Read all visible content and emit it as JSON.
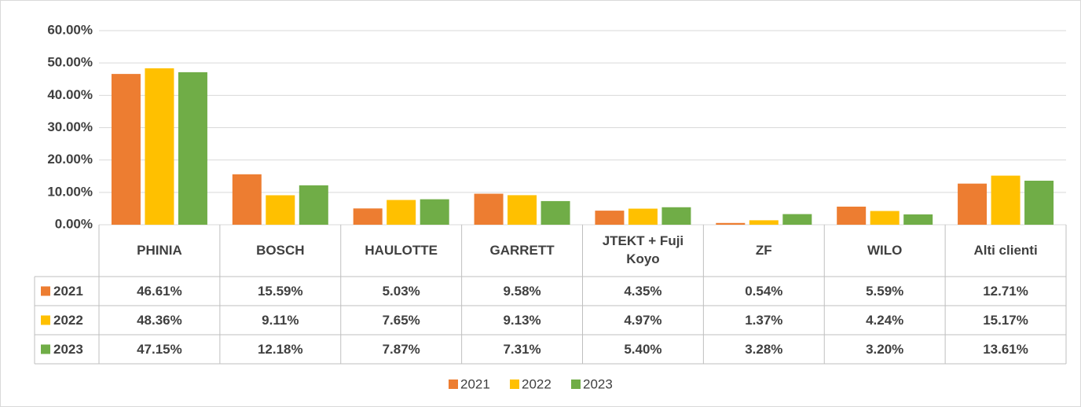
{
  "chart_data": {
    "type": "bar",
    "categories": [
      "PHINIA",
      "BOSCH",
      "HAULOTTE",
      "GARRETT",
      "JTEKT + Fuji Koyo",
      "ZF",
      "WILO",
      "Alti clienti"
    ],
    "series": [
      {
        "name": "2021",
        "color": "#ed7d31",
        "values": [
          46.61,
          15.59,
          5.03,
          9.58,
          4.35,
          0.54,
          5.59,
          12.71
        ],
        "value_labels": [
          "46.61%",
          "15.59%",
          "5.03%",
          "9.58%",
          "4.35%",
          "0.54%",
          "5.59%",
          "12.71%"
        ]
      },
      {
        "name": "2022",
        "color": "#ffc000",
        "values": [
          48.36,
          9.11,
          7.65,
          9.13,
          4.97,
          1.37,
          4.24,
          15.17
        ],
        "value_labels": [
          "48.36%",
          "9.11%",
          "7.65%",
          "9.13%",
          "4.97%",
          "1.37%",
          "4.24%",
          "15.17%"
        ]
      },
      {
        "name": "2023",
        "color": "#70ad47",
        "values": [
          47.15,
          12.18,
          7.87,
          7.31,
          5.4,
          3.28,
          3.2,
          13.61
        ],
        "value_labels": [
          "47.15%",
          "12.18%",
          "7.87%",
          "7.31%",
          "5.40%",
          "3.28%",
          "3.20%",
          "13.61%"
        ]
      }
    ],
    "ylim": [
      0,
      60
    ],
    "yticks": [
      {
        "value": 0,
        "label": "0.00%"
      },
      {
        "value": 10,
        "label": "10.00%"
      },
      {
        "value": 20,
        "label": "20.00%"
      },
      {
        "value": 30,
        "label": "30.00%"
      },
      {
        "value": 40,
        "label": "40.00%"
      },
      {
        "value": 50,
        "label": "50.00%"
      },
      {
        "value": 60,
        "label": "60.00%"
      }
    ],
    "grid": true,
    "legend": "bottom"
  }
}
